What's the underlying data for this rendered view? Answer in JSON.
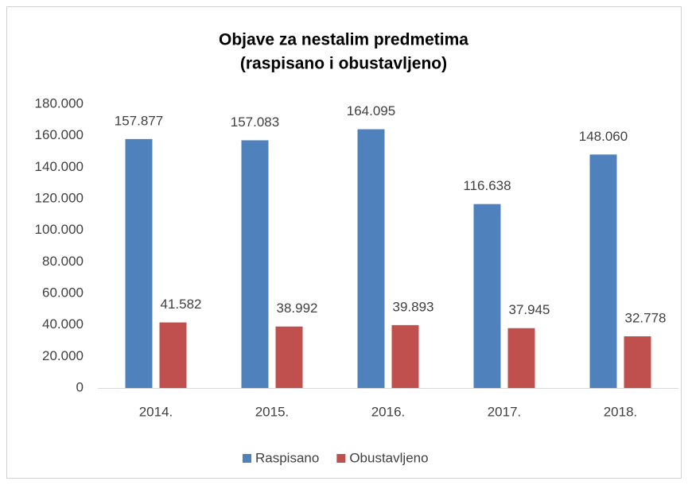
{
  "chart_data": {
    "type": "bar",
    "title": [
      "Objave za nestalim predmetima",
      "(raspisano  i obustavljeno)"
    ],
    "categories": [
      "2014.",
      "2015.",
      "2016.",
      "2017.",
      "2018."
    ],
    "series": [
      {
        "name": "Raspisano",
        "color": "#4f81bd",
        "values": [
          157877,
          157083,
          164095,
          116638,
          148060
        ],
        "value_labels": [
          "157.877",
          "157.083",
          "164.095",
          "116.638",
          "148.060"
        ]
      },
      {
        "name": "Obustavljeno",
        "color": "#c0504d",
        "values": [
          41582,
          38992,
          39893,
          37945,
          32778
        ],
        "value_labels": [
          "41.582",
          "38.992",
          "39.893",
          "37.945",
          "32.778"
        ]
      }
    ],
    "ylim": [
      0,
      180000
    ],
    "yticks": [
      0,
      {
        "value": 20000,
        "label": "20.000"
      },
      {
        "value": 40000,
        "label": "40.000"
      },
      {
        "value": 60000,
        "label": "60.000"
      },
      {
        "value": 80000,
        "label": "80.000"
      },
      {
        "value": 100000,
        "label": "100.000"
      },
      {
        "value": 120000,
        "label": "120.000"
      },
      {
        "value": 140000,
        "label": "140.000"
      },
      {
        "value": 160000,
        "label": "160.000"
      },
      {
        "value": 180000,
        "label": "180.000"
      }
    ],
    "grid": false,
    "legend": "bottom"
  }
}
